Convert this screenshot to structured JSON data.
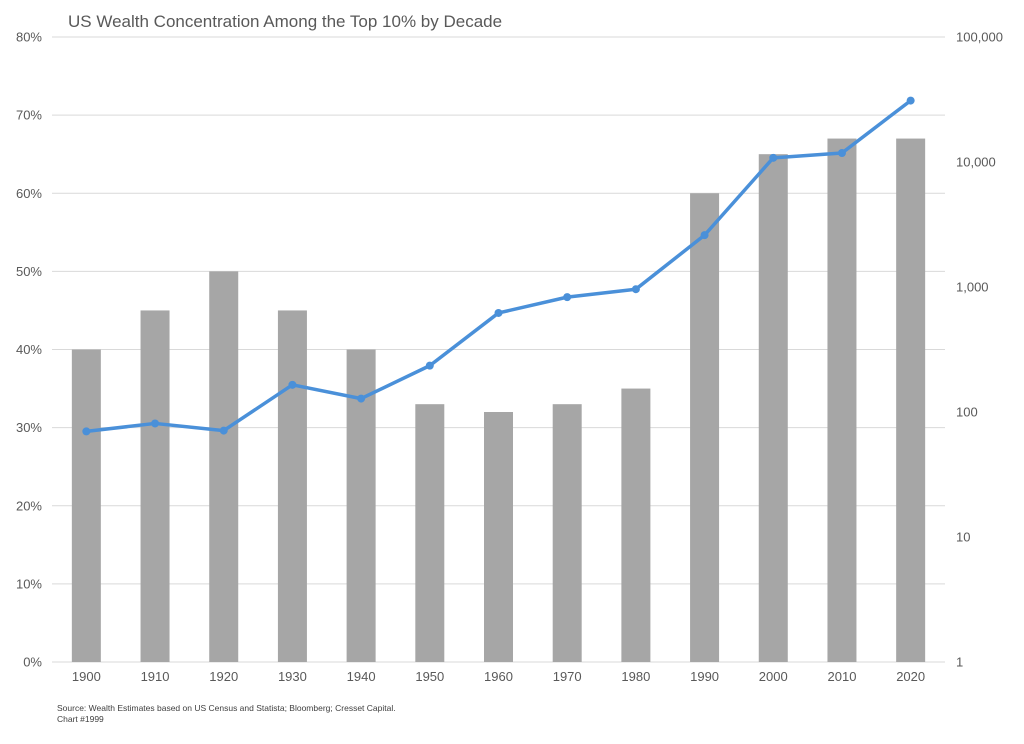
{
  "chart_data": {
    "type": "bar",
    "title": "US Wealth Concentration Among the Top 10% by Decade",
    "categories": [
      "1900",
      "1910",
      "1920",
      "1930",
      "1940",
      "1950",
      "1960",
      "1970",
      "1980",
      "1990",
      "2000",
      "2010",
      "2020"
    ],
    "series": [
      {
        "type": "bar",
        "axis": "left",
        "values": [
          40,
          45,
          50,
          45,
          40,
          33,
          32,
          33,
          35,
          60,
          65,
          67,
          67
        ],
        "color": "#a6a6a6"
      },
      {
        "type": "line",
        "axis": "right",
        "values": [
          70,
          81,
          71,
          165,
          128,
          235,
          620,
          830,
          960,
          2600,
          10800,
          11800,
          31000
        ],
        "color": "#4a90d9"
      }
    ],
    "y_left": {
      "min": 0,
      "max": 80,
      "ticks": [
        0,
        10,
        20,
        30,
        40,
        50,
        60,
        70,
        80
      ],
      "tick_labels": [
        "0%",
        "10%",
        "20%",
        "30%",
        "40%",
        "50%",
        "60%",
        "70%",
        "80%"
      ]
    },
    "y_right": {
      "scale": "log",
      "min": 1,
      "max": 100000,
      "ticks": [
        1,
        10,
        100,
        1000,
        10000,
        100000
      ],
      "tick_labels": [
        "1",
        "10",
        "100",
        "1,000",
        "10,000",
        "100,000"
      ]
    },
    "grid": true,
    "legend": "none"
  },
  "source": {
    "line1": "Source: Wealth Estimates based on US Census and Statista; Bloomberg; Cresset Capital.",
    "line2": "Chart #1999"
  }
}
